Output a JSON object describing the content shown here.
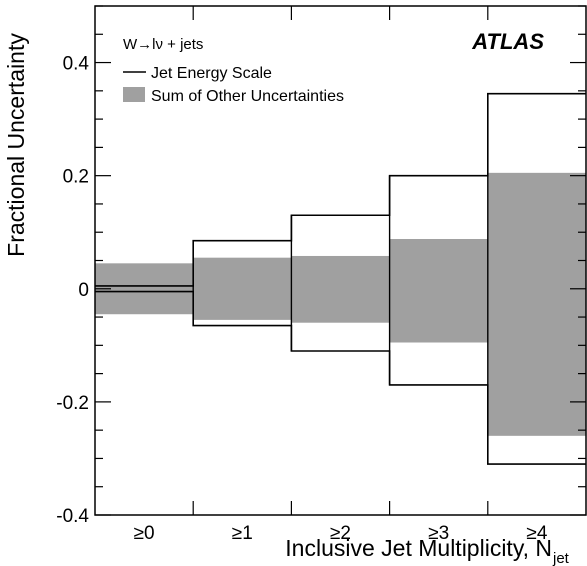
{
  "chart_data": {
    "type": "bar",
    "title": "",
    "experiment_label": "ATLAS",
    "legend_title": "W→lν + jets",
    "xlabel": "Inclusive Jet Multiplicity, N",
    "xlabel_subscript": "jet",
    "ylabel": "Fractional Uncertainty",
    "categories": [
      "≥0",
      "≥1",
      "≥2",
      "≥3",
      "≥4"
    ],
    "ylim": [
      -0.4,
      0.5
    ],
    "yticks": [
      {
        "value": -0.4,
        "label": "-0.4"
      },
      {
        "value": -0.2,
        "label": "-0.2"
      },
      {
        "value": 0,
        "label": "0"
      },
      {
        "value": 0.2,
        "label": "0.2"
      },
      {
        "value": 0.4,
        "label": "0.4"
      }
    ],
    "y_minor_step": 0.05,
    "legend_position": "top-left",
    "grid": false,
    "series": [
      {
        "name": "Jet Energy Scale",
        "style": "outline",
        "upper": [
          0.005,
          0.085,
          0.13,
          0.2,
          0.345
        ],
        "lower": [
          -0.005,
          -0.065,
          -0.11,
          -0.17,
          -0.31
        ]
      },
      {
        "name": "Sum of Other Uncertainties",
        "style": "filled-band",
        "upper": [
          0.045,
          0.055,
          0.058,
          0.088,
          0.205
        ],
        "lower": [
          -0.045,
          -0.055,
          -0.06,
          -0.095,
          -0.26
        ]
      }
    ],
    "colors": {
      "band": "#a0a0a0",
      "line": "#000000",
      "frame": "#000000"
    }
  }
}
